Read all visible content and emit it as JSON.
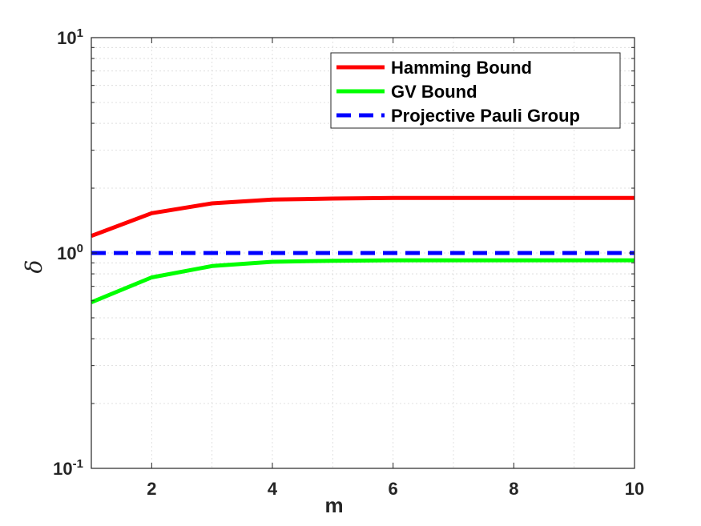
{
  "chart_data": {
    "type": "line",
    "xlabel": "m",
    "ylabel": "δ",
    "xlim": [
      1,
      10
    ],
    "ylim": [
      0.1,
      10
    ],
    "yscale": "log",
    "grid": true,
    "legend_position": "top-right",
    "x_ticks": [
      "2",
      "4",
      "6",
      "8",
      "10"
    ],
    "x_tick_values": [
      2,
      4,
      6,
      8,
      10
    ],
    "y_ticks": [
      {
        "value": 0.1,
        "base": "10",
        "exp": "-1"
      },
      {
        "value": 1,
        "base": "10",
        "exp": "0"
      },
      {
        "value": 10,
        "base": "10",
        "exp": "1"
      }
    ],
    "x": [
      1,
      2,
      3,
      4,
      5,
      6,
      7,
      8,
      9,
      10
    ],
    "series": [
      {
        "name": "Hamming Bound",
        "color": "#ff0000",
        "style": "solid",
        "values": [
          1.2,
          1.53,
          1.7,
          1.77,
          1.79,
          1.8,
          1.8,
          1.8,
          1.8,
          1.8
        ]
      },
      {
        "name": "GV Bound",
        "color": "#00ff00",
        "style": "solid",
        "values": [
          0.59,
          0.77,
          0.87,
          0.91,
          0.92,
          0.925,
          0.925,
          0.925,
          0.925,
          0.925
        ]
      },
      {
        "name": "Projective Pauli Group",
        "color": "#0000ff",
        "style": "dashed",
        "values": [
          1,
          1,
          1,
          1,
          1,
          1,
          1,
          1,
          1,
          1
        ]
      }
    ]
  }
}
